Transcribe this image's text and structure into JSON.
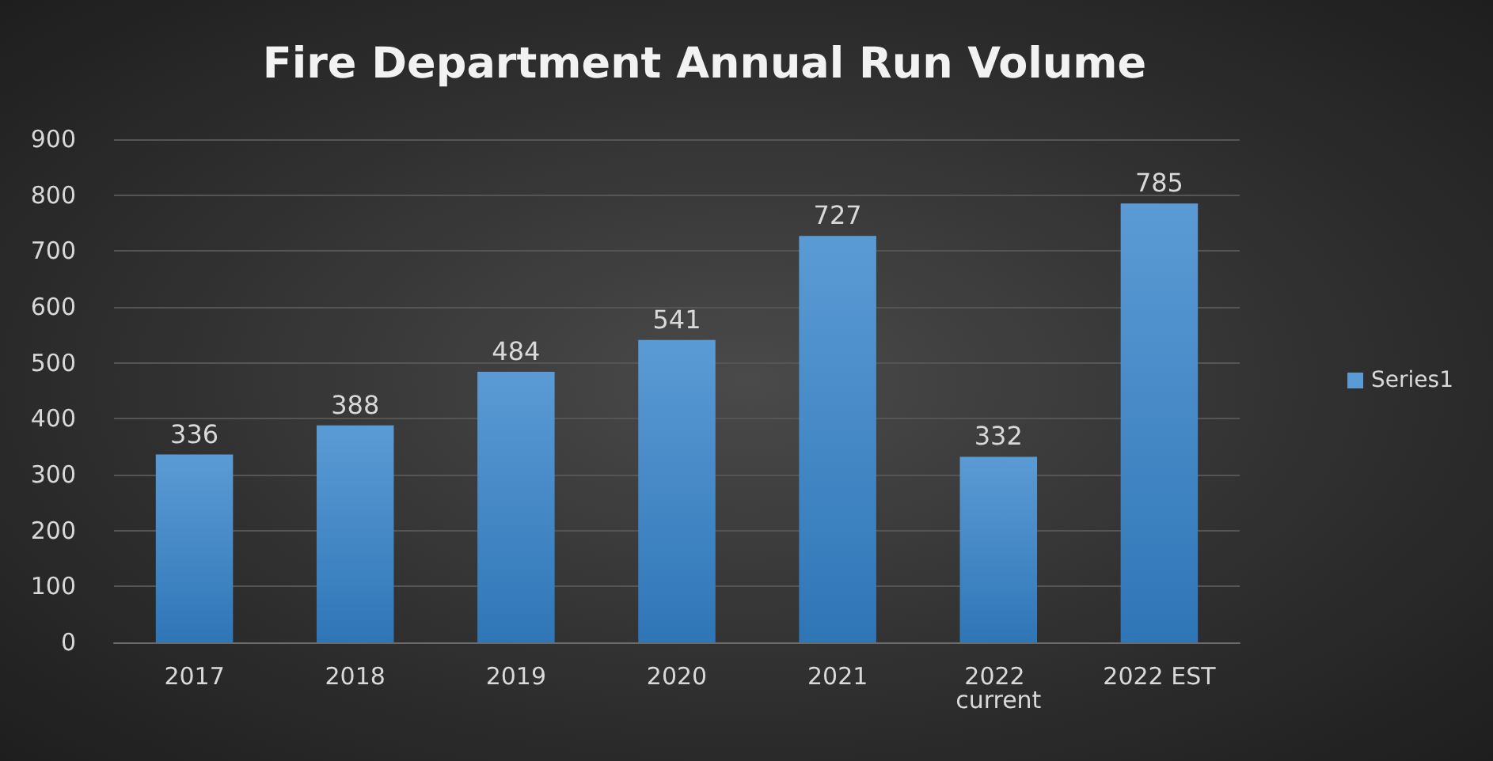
{
  "chart_data": {
    "type": "bar",
    "title": "Fire Department Annual Run Volume",
    "categories": [
      "2017",
      "2018",
      "2019",
      "2020",
      "2021",
      "2022 current",
      "2022 EST"
    ],
    "series": [
      {
        "name": "Series1",
        "color": "#5b9bd5",
        "values": [
          336,
          388,
          484,
          541,
          727,
          332,
          785
        ]
      }
    ],
    "ylim": [
      0,
      900
    ],
    "yticks": [
      0,
      100,
      200,
      300,
      400,
      500,
      600,
      700,
      800,
      900
    ],
    "grid": "y",
    "legend": "right",
    "data_labels": true
  }
}
